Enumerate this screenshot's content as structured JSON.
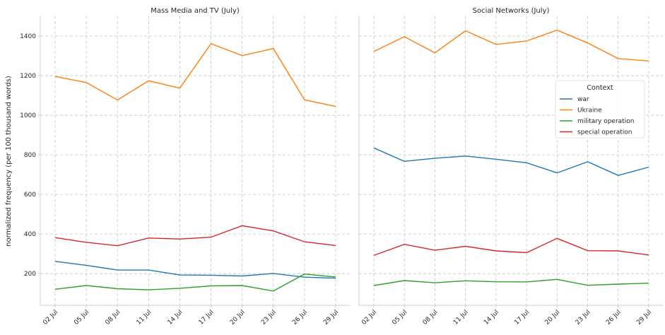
{
  "chart_data": {
    "type": "line",
    "ylabel": "normalized frequency (per 100 thousand words)",
    "ylim": [
      40,
      1500
    ],
    "yticks": [
      200,
      400,
      600,
      800,
      1000,
      1200,
      1400
    ],
    "x": [
      "02 Jul",
      "05 Jul",
      "08 Jul",
      "11 Jul",
      "14 Jul",
      "17 Jul",
      "20 Jul",
      "23 Jul",
      "26 Jul",
      "29 Jul"
    ],
    "legend": {
      "title": "Context",
      "placement": "right, in second panel",
      "entries": [
        {
          "name": "war",
          "color": "#1f77b4"
        },
        {
          "name": "Ukraine",
          "color": "#ff7f0e"
        },
        {
          "name": "military operation",
          "color": "#2ca02c"
        },
        {
          "name": "special operation",
          "color": "#d62728"
        }
      ]
    },
    "grid": true,
    "panels": [
      {
        "title": "Mass Media and TV (July)",
        "series": [
          {
            "name": "war",
            "color": "#1f77b4",
            "values": [
              262,
              242,
              218,
              218,
              193,
              192,
              188,
              201,
              182,
              177
            ]
          },
          {
            "name": "Ukraine",
            "color": "#ff7f0e",
            "values": [
              1196,
              1165,
              1077,
              1174,
              1137,
              1361,
              1301,
              1337,
              1078,
              1044
            ]
          },
          {
            "name": "military operation",
            "color": "#2ca02c",
            "values": [
              121,
              140,
              124,
              118,
              126,
              138,
              140,
              112,
              198,
              183
            ]
          },
          {
            "name": "special operation",
            "color": "#d62728",
            "values": [
              382,
              358,
              341,
              380,
              375,
              384,
              442,
              416,
              361,
              342
            ]
          }
        ]
      },
      {
        "title": "Social Networks (July)",
        "series": [
          {
            "name": "war",
            "color": "#1f77b4",
            "values": [
              835,
              767,
              783,
              794,
              778,
              760,
              709,
              765,
              696,
              738
            ]
          },
          {
            "name": "Ukraine",
            "color": "#ff7f0e",
            "values": [
              1322,
              1397,
              1315,
              1427,
              1358,
              1375,
              1430,
              1365,
              1286,
              1274
            ]
          },
          {
            "name": "military operation",
            "color": "#2ca02c",
            "values": [
              140,
              165,
              154,
              164,
              159,
              158,
              171,
              141,
              147,
              152
            ]
          },
          {
            "name": "special operation",
            "color": "#d62728",
            "values": [
              292,
              348,
              318,
              338,
              315,
              306,
              378,
              316,
              315,
              294
            ]
          }
        ]
      }
    ]
  }
}
